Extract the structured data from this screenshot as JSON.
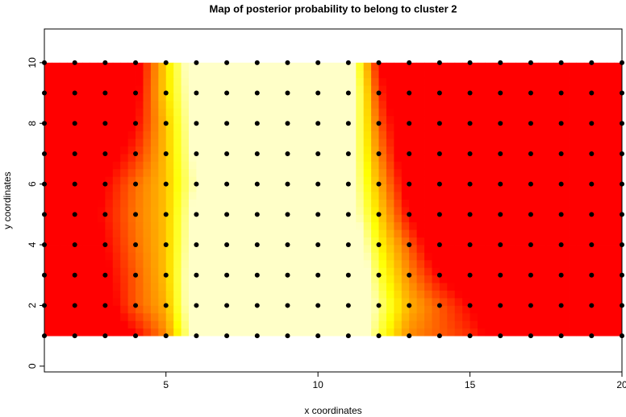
{
  "chart_data": {
    "type": "heatmap",
    "title": "Map of posterior probability to belong to cluster  2",
    "xlabel": "x coordinates",
    "ylabel": "y coordinates",
    "xlim": [
      1,
      20
    ],
    "ylim": [
      -0.19,
      11.11
    ],
    "xticks": [
      5,
      10,
      15,
      20
    ],
    "yticks": [
      0,
      2,
      4,
      6,
      8,
      10
    ],
    "x": [
      1,
      2,
      3,
      4,
      5,
      6,
      7,
      8,
      9,
      10,
      11,
      12,
      13,
      14,
      15,
      16,
      17,
      18,
      19,
      20
    ],
    "y": [
      1,
      2,
      3,
      4,
      5,
      6,
      7,
      8,
      9,
      10
    ],
    "z": [
      [
        0.1,
        0.1,
        0.12,
        0.2,
        0.35,
        0.7,
        0.85,
        0.85,
        0.85,
        0.85,
        0.85,
        0.55,
        0.35,
        0.3,
        0.25,
        0.15,
        0.05,
        0.05,
        0.05,
        0.05
      ],
      [
        0.1,
        0.12,
        0.15,
        0.3,
        0.4,
        0.75,
        0.85,
        0.85,
        0.85,
        0.85,
        0.85,
        0.6,
        0.4,
        0.3,
        0.2,
        0.1,
        0.05,
        0.05,
        0.05,
        0.05
      ],
      [
        0.1,
        0.12,
        0.18,
        0.3,
        0.42,
        0.75,
        0.85,
        0.85,
        0.85,
        0.85,
        0.85,
        0.55,
        0.35,
        0.2,
        0.12,
        0.05,
        0.05,
        0.05,
        0.05,
        0.05
      ],
      [
        0.1,
        0.12,
        0.2,
        0.32,
        0.42,
        0.72,
        0.85,
        0.85,
        0.85,
        0.85,
        0.8,
        0.5,
        0.3,
        0.1,
        0.05,
        0.05,
        0.05,
        0.05,
        0.05,
        0.05
      ],
      [
        0.1,
        0.12,
        0.22,
        0.33,
        0.42,
        0.7,
        0.85,
        0.85,
        0.85,
        0.85,
        0.72,
        0.45,
        0.2,
        0.08,
        0.05,
        0.05,
        0.05,
        0.05,
        0.05,
        0.05
      ],
      [
        0.1,
        0.12,
        0.2,
        0.32,
        0.42,
        0.65,
        0.85,
        0.85,
        0.85,
        0.85,
        0.7,
        0.4,
        0.15,
        0.05,
        0.05,
        0.05,
        0.05,
        0.05,
        0.05,
        0.05
      ],
      [
        0.1,
        0.1,
        0.15,
        0.25,
        0.42,
        0.68,
        0.85,
        0.85,
        0.85,
        0.85,
        0.7,
        0.35,
        0.1,
        0.05,
        0.05,
        0.05,
        0.05,
        0.05,
        0.05,
        0.05
      ],
      [
        0.1,
        0.1,
        0.12,
        0.2,
        0.42,
        0.7,
        0.85,
        0.85,
        0.85,
        0.85,
        0.72,
        0.3,
        0.08,
        0.05,
        0.05,
        0.05,
        0.05,
        0.05,
        0.05,
        0.05
      ],
      [
        0.1,
        0.1,
        0.1,
        0.17,
        0.45,
        0.72,
        0.85,
        0.85,
        0.85,
        0.85,
        0.75,
        0.25,
        0.06,
        0.05,
        0.05,
        0.05,
        0.05,
        0.05,
        0.05,
        0.05
      ],
      [
        0.1,
        0.1,
        0.1,
        0.15,
        0.45,
        0.75,
        0.85,
        0.85,
        0.85,
        0.85,
        0.72,
        0.2,
        0.05,
        0.05,
        0.05,
        0.05,
        0.05,
        0.05,
        0.05,
        0.05
      ]
    ],
    "color_scale": [
      {
        "value": 0.2,
        "color": "#ff0000"
      },
      {
        "value": 0.35,
        "color": "#ff8a00"
      },
      {
        "value": 0.5,
        "color": "#ffff00"
      },
      {
        "value": 0.65,
        "color": "#ffffc8"
      }
    ],
    "point_color": "#000000"
  }
}
